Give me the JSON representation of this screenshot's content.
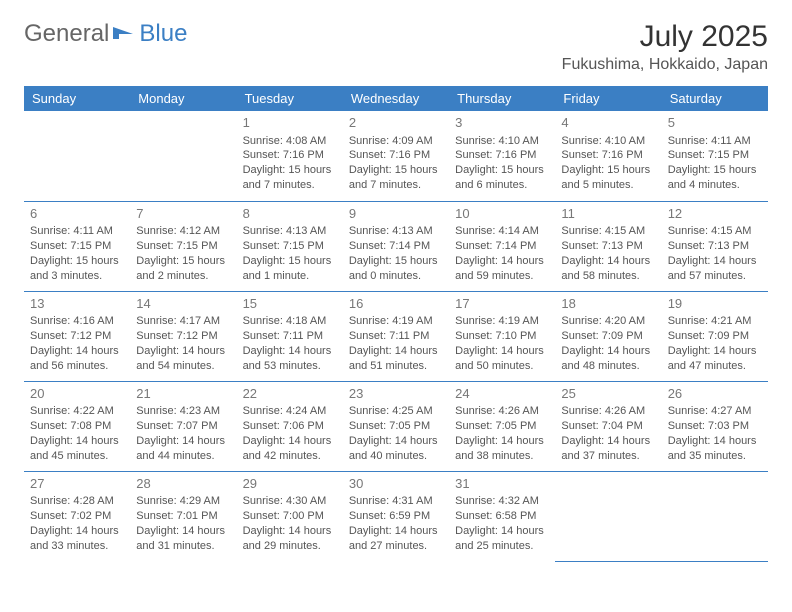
{
  "brand": {
    "text1": "General",
    "text2": "Blue",
    "text1_color": "#666666",
    "text2_color": "#3b7fc4",
    "icon_color": "#3b7fc4"
  },
  "title": "July 2025",
  "location": "Fukushima, Hokkaido, Japan",
  "colors": {
    "header_bg": "#3b7fc4",
    "header_text": "#ffffff",
    "cell_border": "#3b7fc4",
    "body_text": "#555555",
    "daynum_text": "#777777",
    "background": "#ffffff"
  },
  "typography": {
    "month_title_fontsize": 30,
    "location_fontsize": 16,
    "dayheader_fontsize": 13,
    "cell_fontsize": 11,
    "daynum_fontsize": 13
  },
  "day_headers": [
    "Sunday",
    "Monday",
    "Tuesday",
    "Wednesday",
    "Thursday",
    "Friday",
    "Saturday"
  ],
  "weeks": [
    [
      null,
      null,
      {
        "num": "1",
        "sunrise": "Sunrise: 4:08 AM",
        "sunset": "Sunset: 7:16 PM",
        "daylight": "Daylight: 15 hours and 7 minutes."
      },
      {
        "num": "2",
        "sunrise": "Sunrise: 4:09 AM",
        "sunset": "Sunset: 7:16 PM",
        "daylight": "Daylight: 15 hours and 7 minutes."
      },
      {
        "num": "3",
        "sunrise": "Sunrise: 4:10 AM",
        "sunset": "Sunset: 7:16 PM",
        "daylight": "Daylight: 15 hours and 6 minutes."
      },
      {
        "num": "4",
        "sunrise": "Sunrise: 4:10 AM",
        "sunset": "Sunset: 7:16 PM",
        "daylight": "Daylight: 15 hours and 5 minutes."
      },
      {
        "num": "5",
        "sunrise": "Sunrise: 4:11 AM",
        "sunset": "Sunset: 7:15 PM",
        "daylight": "Daylight: 15 hours and 4 minutes."
      }
    ],
    [
      {
        "num": "6",
        "sunrise": "Sunrise: 4:11 AM",
        "sunset": "Sunset: 7:15 PM",
        "daylight": "Daylight: 15 hours and 3 minutes."
      },
      {
        "num": "7",
        "sunrise": "Sunrise: 4:12 AM",
        "sunset": "Sunset: 7:15 PM",
        "daylight": "Daylight: 15 hours and 2 minutes."
      },
      {
        "num": "8",
        "sunrise": "Sunrise: 4:13 AM",
        "sunset": "Sunset: 7:15 PM",
        "daylight": "Daylight: 15 hours and 1 minute."
      },
      {
        "num": "9",
        "sunrise": "Sunrise: 4:13 AM",
        "sunset": "Sunset: 7:14 PM",
        "daylight": "Daylight: 15 hours and 0 minutes."
      },
      {
        "num": "10",
        "sunrise": "Sunrise: 4:14 AM",
        "sunset": "Sunset: 7:14 PM",
        "daylight": "Daylight: 14 hours and 59 minutes."
      },
      {
        "num": "11",
        "sunrise": "Sunrise: 4:15 AM",
        "sunset": "Sunset: 7:13 PM",
        "daylight": "Daylight: 14 hours and 58 minutes."
      },
      {
        "num": "12",
        "sunrise": "Sunrise: 4:15 AM",
        "sunset": "Sunset: 7:13 PM",
        "daylight": "Daylight: 14 hours and 57 minutes."
      }
    ],
    [
      {
        "num": "13",
        "sunrise": "Sunrise: 4:16 AM",
        "sunset": "Sunset: 7:12 PM",
        "daylight": "Daylight: 14 hours and 56 minutes."
      },
      {
        "num": "14",
        "sunrise": "Sunrise: 4:17 AM",
        "sunset": "Sunset: 7:12 PM",
        "daylight": "Daylight: 14 hours and 54 minutes."
      },
      {
        "num": "15",
        "sunrise": "Sunrise: 4:18 AM",
        "sunset": "Sunset: 7:11 PM",
        "daylight": "Daylight: 14 hours and 53 minutes."
      },
      {
        "num": "16",
        "sunrise": "Sunrise: 4:19 AM",
        "sunset": "Sunset: 7:11 PM",
        "daylight": "Daylight: 14 hours and 51 minutes."
      },
      {
        "num": "17",
        "sunrise": "Sunrise: 4:19 AM",
        "sunset": "Sunset: 7:10 PM",
        "daylight": "Daylight: 14 hours and 50 minutes."
      },
      {
        "num": "18",
        "sunrise": "Sunrise: 4:20 AM",
        "sunset": "Sunset: 7:09 PM",
        "daylight": "Daylight: 14 hours and 48 minutes."
      },
      {
        "num": "19",
        "sunrise": "Sunrise: 4:21 AM",
        "sunset": "Sunset: 7:09 PM",
        "daylight": "Daylight: 14 hours and 47 minutes."
      }
    ],
    [
      {
        "num": "20",
        "sunrise": "Sunrise: 4:22 AM",
        "sunset": "Sunset: 7:08 PM",
        "daylight": "Daylight: 14 hours and 45 minutes."
      },
      {
        "num": "21",
        "sunrise": "Sunrise: 4:23 AM",
        "sunset": "Sunset: 7:07 PM",
        "daylight": "Daylight: 14 hours and 44 minutes."
      },
      {
        "num": "22",
        "sunrise": "Sunrise: 4:24 AM",
        "sunset": "Sunset: 7:06 PM",
        "daylight": "Daylight: 14 hours and 42 minutes."
      },
      {
        "num": "23",
        "sunrise": "Sunrise: 4:25 AM",
        "sunset": "Sunset: 7:05 PM",
        "daylight": "Daylight: 14 hours and 40 minutes."
      },
      {
        "num": "24",
        "sunrise": "Sunrise: 4:26 AM",
        "sunset": "Sunset: 7:05 PM",
        "daylight": "Daylight: 14 hours and 38 minutes."
      },
      {
        "num": "25",
        "sunrise": "Sunrise: 4:26 AM",
        "sunset": "Sunset: 7:04 PM",
        "daylight": "Daylight: 14 hours and 37 minutes."
      },
      {
        "num": "26",
        "sunrise": "Sunrise: 4:27 AM",
        "sunset": "Sunset: 7:03 PM",
        "daylight": "Daylight: 14 hours and 35 minutes."
      }
    ],
    [
      {
        "num": "27",
        "sunrise": "Sunrise: 4:28 AM",
        "sunset": "Sunset: 7:02 PM",
        "daylight": "Daylight: 14 hours and 33 minutes."
      },
      {
        "num": "28",
        "sunrise": "Sunrise: 4:29 AM",
        "sunset": "Sunset: 7:01 PM",
        "daylight": "Daylight: 14 hours and 31 minutes."
      },
      {
        "num": "29",
        "sunrise": "Sunrise: 4:30 AM",
        "sunset": "Sunset: 7:00 PM",
        "daylight": "Daylight: 14 hours and 29 minutes."
      },
      {
        "num": "30",
        "sunrise": "Sunrise: 4:31 AM",
        "sunset": "Sunset: 6:59 PM",
        "daylight": "Daylight: 14 hours and 27 minutes."
      },
      {
        "num": "31",
        "sunrise": "Sunrise: 4:32 AM",
        "sunset": "Sunset: 6:58 PM",
        "daylight": "Daylight: 14 hours and 25 minutes."
      },
      null,
      null
    ]
  ]
}
